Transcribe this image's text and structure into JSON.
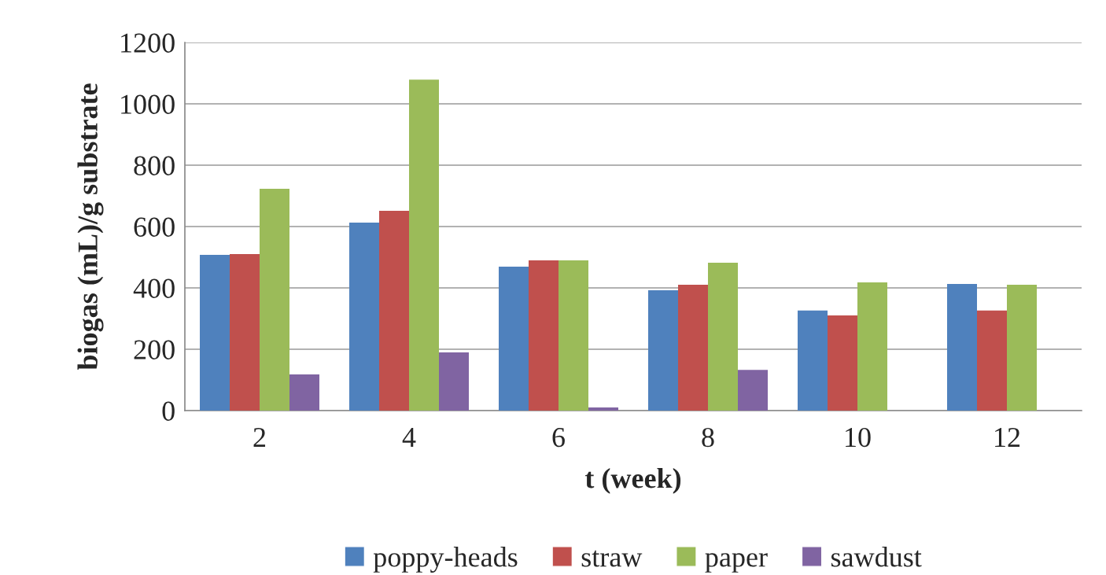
{
  "chart_data": {
    "type": "bar",
    "xlabel": "t (week)",
    "ylabel": "biogas (mL)/g substrate",
    "categories": [
      "2",
      "4",
      "6",
      "8",
      "10",
      "12"
    ],
    "series": [
      {
        "name": "poppy-heads",
        "color": "#4f81bd",
        "values": [
          508,
          613,
          469,
          392,
          326,
          413
        ]
      },
      {
        "name": "straw",
        "color": "#c0504d",
        "values": [
          510,
          651,
          490,
          410,
          310,
          326
        ]
      },
      {
        "name": "paper",
        "color": "#9bbb59",
        "values": [
          723,
          1079,
          490,
          482,
          418,
          410
        ]
      },
      {
        "name": "sawdust",
        "color": "#8064a2",
        "values": [
          118,
          190,
          10,
          133,
          null,
          null
        ]
      }
    ],
    "ylim": [
      0,
      1200
    ],
    "yticks": [
      0,
      200,
      400,
      600,
      800,
      1000,
      1200
    ],
    "grid": "y",
    "legend": "bottom"
  }
}
